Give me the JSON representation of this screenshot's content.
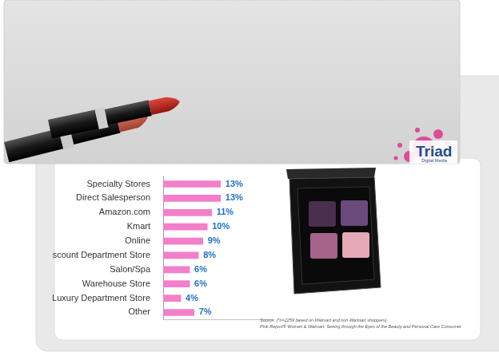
{
  "chart_data": {
    "type": "bar",
    "orientation": "horizontal",
    "categories": [
      "Specialty Stores",
      "Direct Salesperson",
      "Amazon.com",
      "Kmart",
      "Online",
      "Discount Department Store",
      "Salon/Spa",
      "Warehouse Store",
      "Luxury Department Store",
      "Other"
    ],
    "values": [
      13,
      13,
      11,
      10,
      9,
      8,
      6,
      6,
      4,
      7
    ],
    "value_labels": [
      "13%",
      "13%",
      "11%",
      "10%",
      "9%",
      "8%",
      "6%",
      "6%",
      "4%",
      "7%"
    ],
    "color": "#f27fc9",
    "xlim": [
      0,
      25
    ],
    "data_labels": true,
    "tick_labels": "y",
    "grid": false,
    "source": [
      "Source: (*n=2259 based on Walmart and non-Walmart shoppers)",
      "Pink Report® Women & Walmart: Seeing through the Eyes of the Beauty and Personal Care Consumer"
    ],
    "logo": {
      "name": "Triad",
      "tagline": "Digital Media"
    }
  }
}
